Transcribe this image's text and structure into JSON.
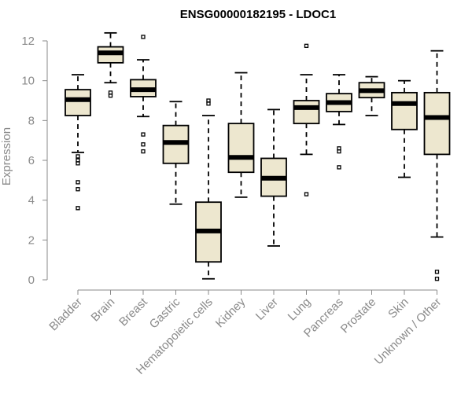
{
  "chart_data": {
    "type": "boxplot",
    "title": "ENSG00000182195 - LDOC1",
    "xlabel": "",
    "ylabel": "Expression",
    "ylim": [
      0,
      12
    ],
    "yticks": [
      0,
      2,
      4,
      6,
      8,
      10,
      12
    ],
    "grid": false,
    "box_color": "#ede7cf",
    "categories": [
      "Bladder",
      "Brain",
      "Breast",
      "Gastric",
      "Hematopoietic cells",
      "Kidney",
      "Liver",
      "Lung",
      "Pancreas",
      "Prostate",
      "Skin",
      "Unknown / Other"
    ],
    "boxes": [
      {
        "name": "Bladder",
        "whisker_low": 6.4,
        "q1": 8.25,
        "median": 9.05,
        "q3": 9.55,
        "whisker_high": 10.3,
        "outliers": [
          6.2,
          6.0,
          5.85,
          4.9,
          4.55,
          3.6
        ]
      },
      {
        "name": "Brain",
        "whisker_low": 9.9,
        "q1": 10.9,
        "median": 11.4,
        "q3": 11.7,
        "whisker_high": 12.4,
        "outliers": [
          9.4,
          9.25
        ]
      },
      {
        "name": "Breast",
        "whisker_low": 8.2,
        "q1": 9.2,
        "median": 9.55,
        "q3": 10.05,
        "whisker_high": 11.05,
        "outliers": [
          12.2,
          7.3,
          6.8,
          6.45
        ]
      },
      {
        "name": "Gastric",
        "whisker_low": 3.8,
        "q1": 5.85,
        "median": 6.9,
        "q3": 7.75,
        "whisker_high": 8.95,
        "outliers": []
      },
      {
        "name": "Hematopoietic cells",
        "whisker_low": 0.05,
        "q1": 0.9,
        "median": 2.45,
        "q3": 3.9,
        "whisker_high": 8.25,
        "outliers": [
          9.0,
          8.85
        ]
      },
      {
        "name": "Kidney",
        "whisker_low": 4.15,
        "q1": 5.4,
        "median": 6.15,
        "q3": 7.85,
        "whisker_high": 10.4,
        "outliers": []
      },
      {
        "name": "Liver",
        "whisker_low": 1.7,
        "q1": 4.2,
        "median": 5.1,
        "q3": 6.1,
        "whisker_high": 8.55,
        "outliers": []
      },
      {
        "name": "Lung",
        "whisker_low": 6.3,
        "q1": 7.85,
        "median": 8.65,
        "q3": 9.0,
        "whisker_high": 10.3,
        "outliers": [
          11.75,
          4.3
        ]
      },
      {
        "name": "Pancreas",
        "whisker_low": 7.8,
        "q1": 8.45,
        "median": 8.9,
        "q3": 9.35,
        "whisker_high": 10.3,
        "outliers": [
          6.6,
          6.45,
          5.65
        ]
      },
      {
        "name": "Prostate",
        "whisker_low": 8.25,
        "q1": 9.15,
        "median": 9.5,
        "q3": 9.9,
        "whisker_high": 10.2,
        "outliers": []
      },
      {
        "name": "Skin",
        "whisker_low": 5.15,
        "q1": 7.55,
        "median": 8.85,
        "q3": 9.4,
        "whisker_high": 10.0,
        "outliers": []
      },
      {
        "name": "Unknown / Other",
        "whisker_low": 2.15,
        "q1": 6.3,
        "median": 8.15,
        "q3": 9.4,
        "whisker_high": 11.5,
        "outliers": [
          0.4,
          0.05
        ]
      }
    ]
  }
}
